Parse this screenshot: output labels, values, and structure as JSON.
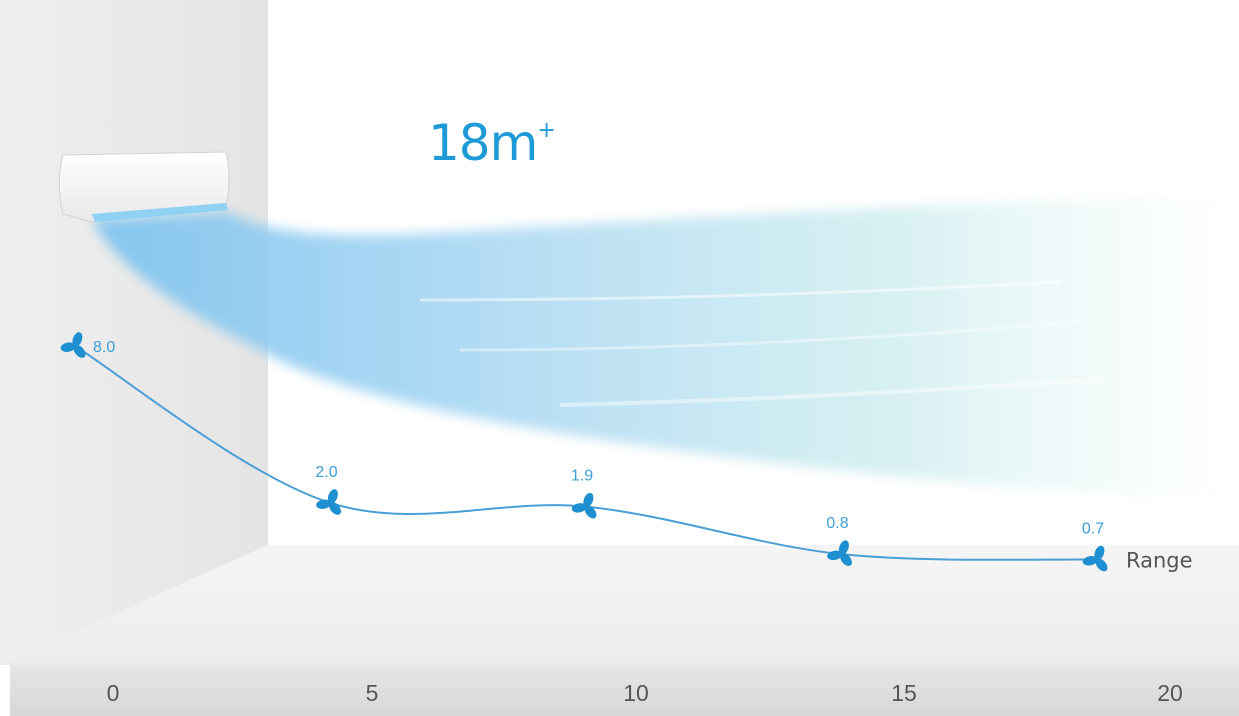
{
  "headline": {
    "value": "18m",
    "superscript": "+"
  },
  "chart_data": {
    "type": "line",
    "xlabel": "",
    "ylabel": "",
    "x_ticks": [
      "0",
      "5",
      "10",
      "15",
      "20"
    ],
    "xlim": [
      0,
      20
    ],
    "ylim": [
      0,
      8
    ],
    "series": [
      {
        "points": [
          {
            "x": 0,
            "y": 8.0,
            "label": "8.0"
          },
          {
            "x": 5,
            "y": 2.0,
            "label": "2.0"
          },
          {
            "x": 10,
            "y": 1.9,
            "label": "1.9"
          },
          {
            "x": 15,
            "y": 0.8,
            "label": "0.8"
          },
          {
            "x": 20,
            "y": 0.7,
            "label": "0.7"
          }
        ]
      }
    ],
    "end_label": "Range",
    "grid": false,
    "legend": "none"
  },
  "colors": {
    "accent": "#1e9bd7",
    "curve": "#4a9fd6",
    "marker": "#1e8fd0",
    "floor_bar": "#e2e2e2"
  },
  "icons": {
    "marker": "fan-icon"
  }
}
